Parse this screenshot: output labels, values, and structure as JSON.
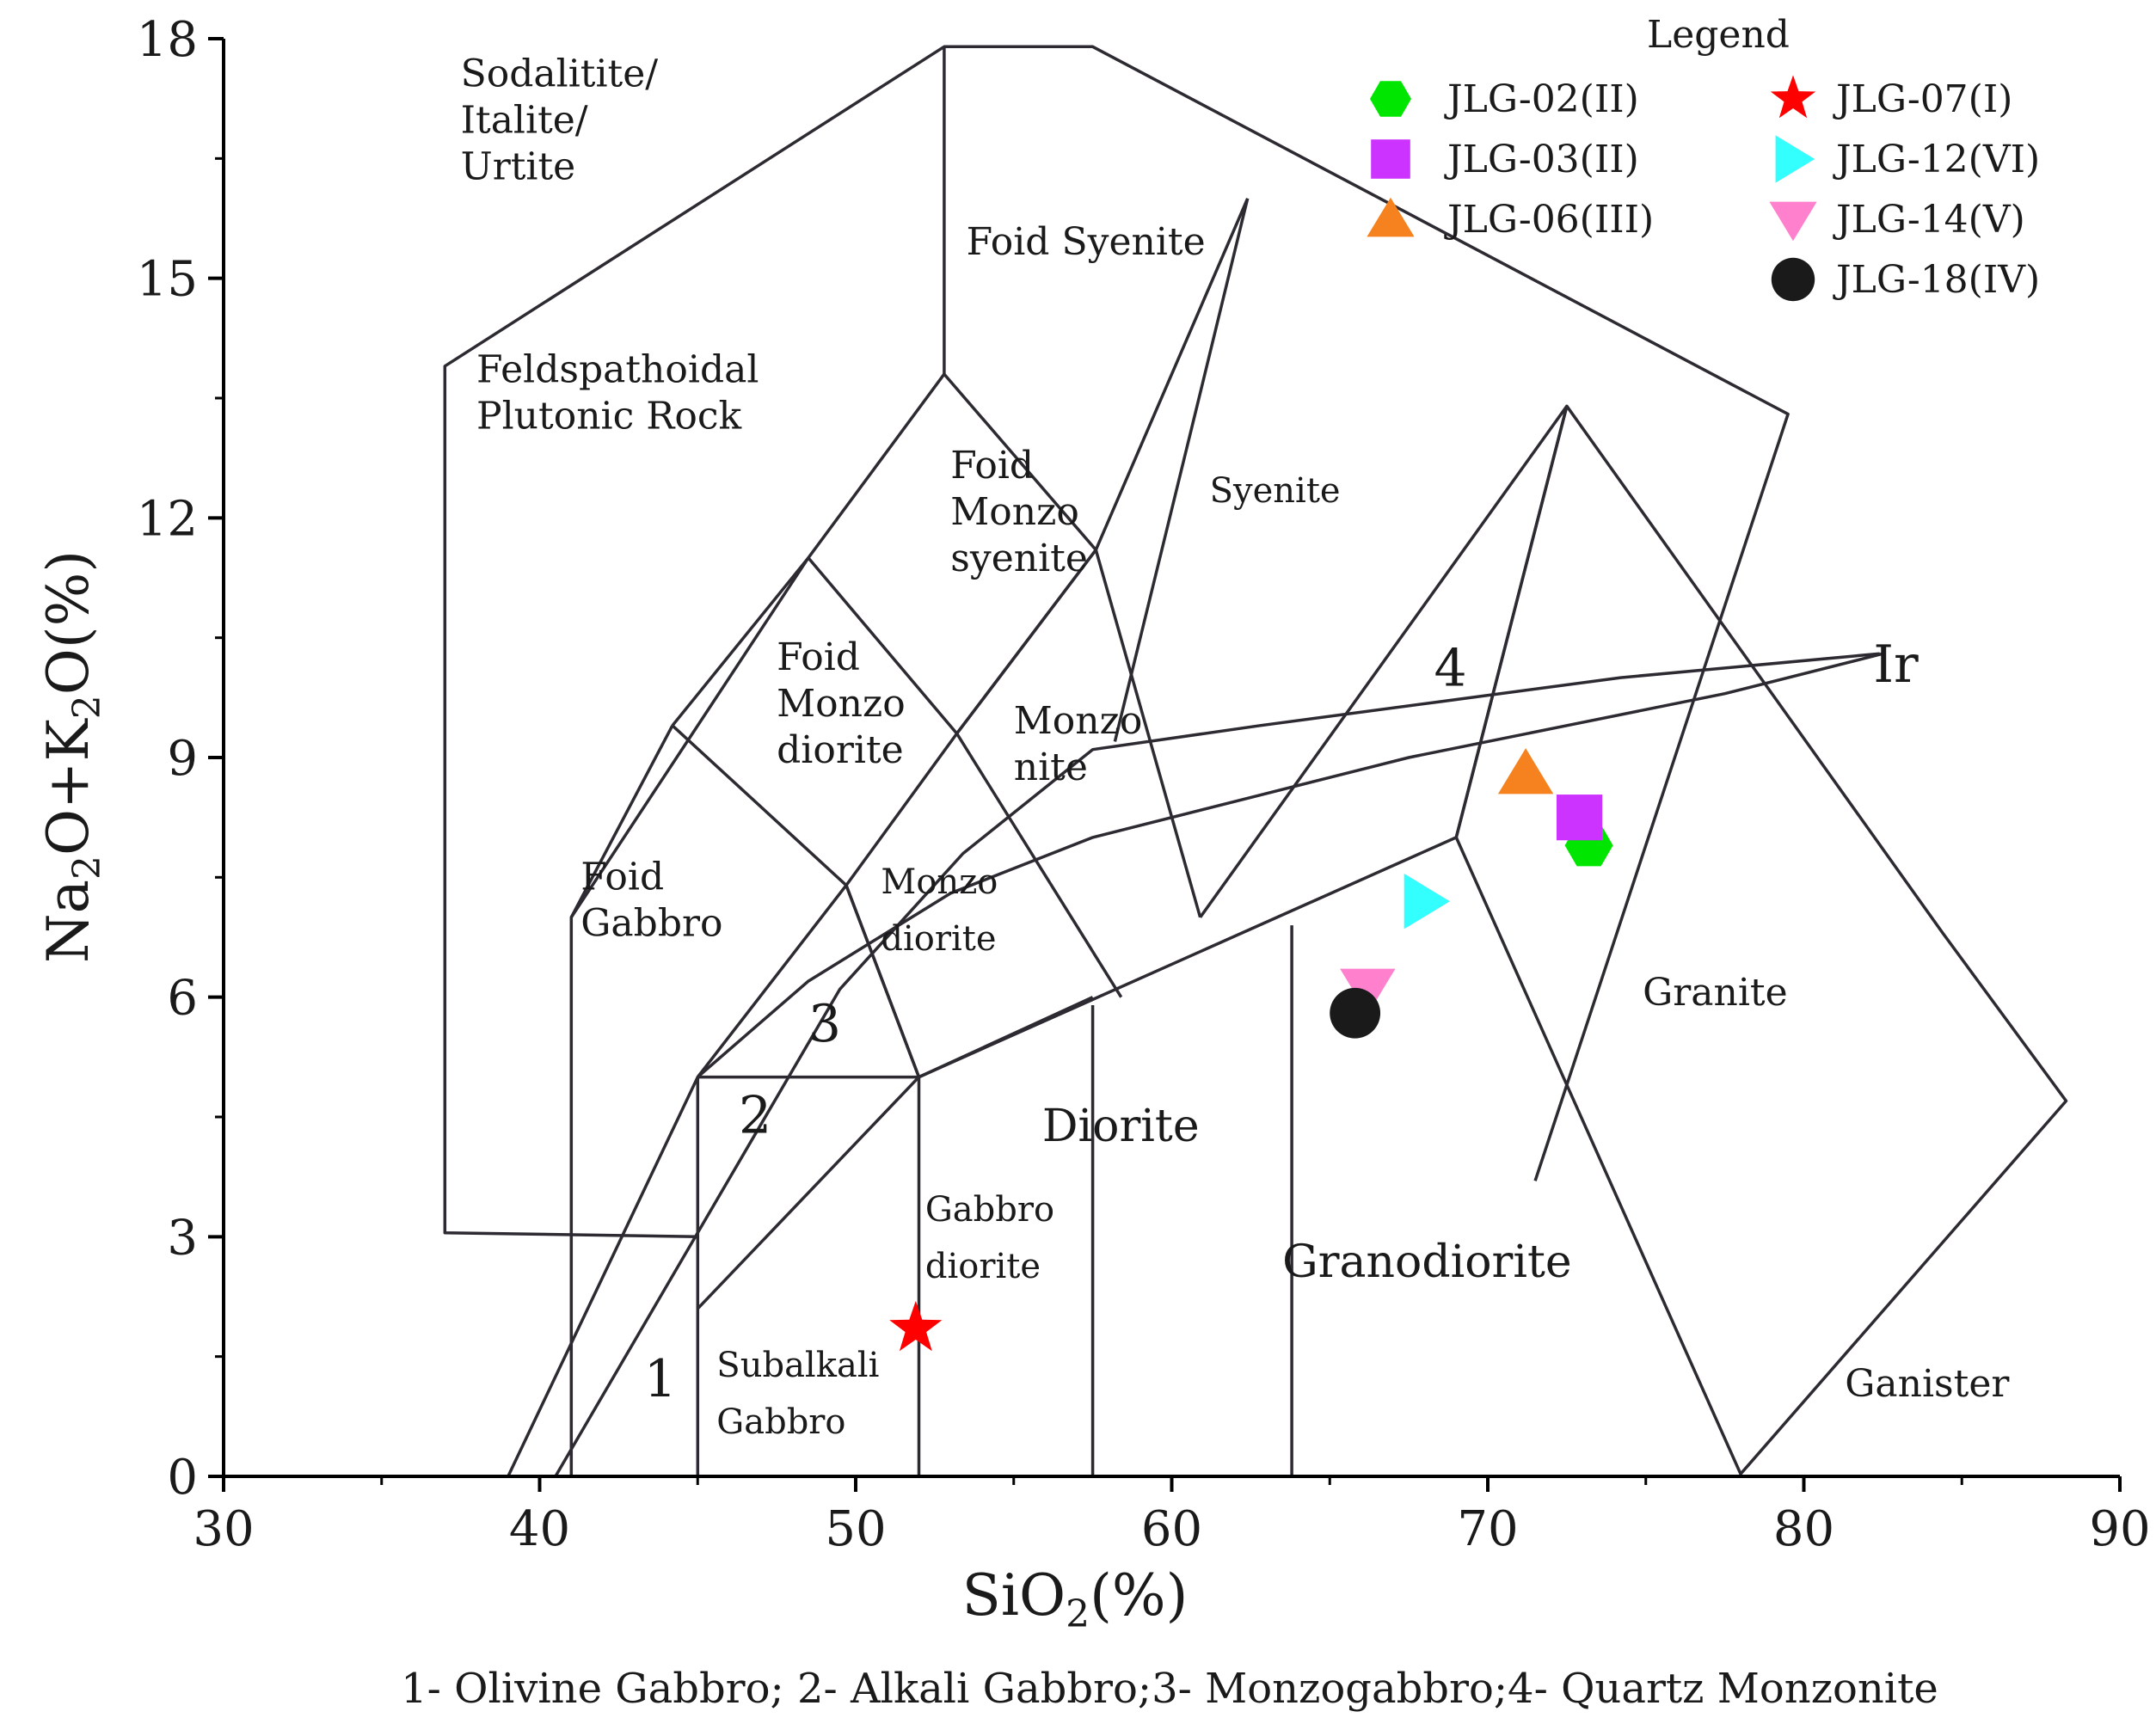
{
  "chart_data": {
    "type": "scatter",
    "title": "",
    "xlabel": {
      "base": "SiO",
      "sub": "2",
      "tail": "(%)"
    },
    "ylabel": {
      "parts": [
        "Na",
        "2",
        "O+K",
        "2",
        "O(%)"
      ]
    },
    "xlim": [
      30,
      90
    ],
    "ylim": [
      0,
      18
    ],
    "xticks": [
      30,
      40,
      50,
      60,
      70,
      80,
      90
    ],
    "yticks": [
      0,
      3,
      6,
      9,
      12,
      15,
      18
    ],
    "grid": false,
    "legend_title": "Legend",
    "legend_placement": "top-right",
    "series": [
      {
        "name": "JLG-02(II)",
        "marker": "hexagon",
        "color": "#00e600",
        "x": 73.2,
        "y": 7.9
      },
      {
        "name": "JLG-03(II)",
        "marker": "square",
        "color": "#cc33ff",
        "x": 72.9,
        "y": 8.25
      },
      {
        "name": "JLG-06(III)",
        "marker": "triangle-up",
        "color": "#f5821f",
        "x": 71.2,
        "y": 8.8
      },
      {
        "name": "JLG-07(I)",
        "marker": "star",
        "color": "#ff0000",
        "x": 51.9,
        "y": 1.85
      },
      {
        "name": "JLG-12(VI)",
        "marker": "triangle-right",
        "color": "#33ffff",
        "x": 68.0,
        "y": 7.2
      },
      {
        "name": "JLG-14(V)",
        "marker": "triangle-down",
        "color": "#ff80cc",
        "x": 66.2,
        "y": 6.1
      },
      {
        "name": "JLG-18(IV)",
        "marker": "circle",
        "color": "#1a1a1a",
        "x": 65.8,
        "y": 5.8
      }
    ],
    "field_labels": [
      {
        "lines": [
          "Sodalitite/",
          "Italite/",
          "Urtite"
        ],
        "x": 37.5,
        "y": 17.4,
        "cls": "fld"
      },
      {
        "lines": [
          "Feldspathoidal",
          "Plutonic Rock"
        ],
        "x": 38.0,
        "y": 13.7,
        "cls": "fld"
      },
      {
        "lines": [
          "Foid Syenite"
        ],
        "x": 53.5,
        "y": 15.3,
        "cls": "fld"
      },
      {
        "lines": [
          "Foid",
          "Monzo",
          "syenite"
        ],
        "x": 53.0,
        "y": 12.5,
        "cls": "fld"
      },
      {
        "lines": [
          "Syenite"
        ],
        "x": 61.2,
        "y": 12.2,
        "cls": "fld-sm"
      },
      {
        "lines": [
          "Foid",
          "Monzo",
          "diorite"
        ],
        "x": 47.5,
        "y": 10.1,
        "cls": "fld"
      },
      {
        "lines": [
          "Monzo",
          "nite"
        ],
        "x": 55.0,
        "y": 9.3,
        "cls": "fld"
      },
      {
        "lines": [
          "Foid",
          "Gabbro"
        ],
        "x": 41.3,
        "y": 7.35,
        "cls": "fld"
      },
      {
        "lines": [
          "Monzo",
          "diorite"
        ],
        "x": 50.8,
        "y": 7.3,
        "cls": "fld-sm"
      },
      {
        "lines": [
          "Diorite"
        ],
        "x": 55.9,
        "y": 4.2,
        "cls": "fld-lg"
      },
      {
        "lines": [
          "Gabbro",
          "diorite"
        ],
        "x": 52.2,
        "y": 3.2,
        "cls": "fld-sm"
      },
      {
        "lines": [
          "Granodiorite"
        ],
        "x": 63.5,
        "y": 2.5,
        "cls": "fld-lg"
      },
      {
        "lines": [
          "Granite"
        ],
        "x": 74.9,
        "y": 5.9,
        "cls": "fld"
      },
      {
        "lines": [
          "Subalkali",
          "Gabbro"
        ],
        "x": 45.6,
        "y": 1.25,
        "cls": "fld-sm"
      },
      {
        "lines": [
          "Ganister"
        ],
        "x": 81.3,
        "y": 1.0,
        "cls": "fld"
      },
      {
        "lines": [
          "1"
        ],
        "x": 43.3,
        "y": 1.0,
        "cls": "num"
      },
      {
        "lines": [
          "2"
        ],
        "x": 46.3,
        "y": 4.3,
        "cls": "num"
      },
      {
        "lines": [
          "3"
        ],
        "x": 48.5,
        "y": 5.45,
        "cls": "num"
      },
      {
        "lines": [
          "4"
        ],
        "x": 68.3,
        "y": 9.9,
        "cls": "num"
      },
      {
        "lines": [
          "Ir"
        ],
        "x": 82.2,
        "y": 9.95,
        "cls": "num"
      }
    ],
    "boundaries": [
      [
        [
          45,
          3
        ],
        [
          37,
          3.05
        ],
        [
          37,
          13.9
        ],
        [
          52.8,
          17.9
        ],
        [
          57.5,
          17.9
        ],
        [
          79.5,
          13.3
        ],
        [
          71.5,
          3.7
        ]
      ],
      [
        [
          52.8,
          17.9
        ],
        [
          52.8,
          13.8
        ]
      ],
      [
        [
          41,
          0
        ],
        [
          41,
          7
        ],
        [
          48.5,
          11.5
        ],
        [
          52.8,
          13.8
        ],
        [
          57.6,
          11.6
        ],
        [
          62.4,
          16
        ]
      ],
      [
        [
          62.4,
          16
        ],
        [
          60.8,
          13.4
        ],
        [
          58.2,
          9.2
        ]
      ],
      [
        [
          44.2,
          9.4
        ],
        [
          41,
          7
        ]
      ],
      [
        [
          44.2,
          9.4
        ],
        [
          48.5,
          11.5
        ],
        [
          53.2,
          9.3
        ],
        [
          57.6,
          11.6
        ]
      ],
      [
        [
          53.2,
          9.3
        ],
        [
          57.6,
          11.6
        ],
        [
          60.9,
          7
        ]
      ],
      [
        [
          44.2,
          9.4
        ],
        [
          49.7,
          7.4
        ],
        [
          53.2,
          9.3
        ]
      ],
      [
        [
          45,
          5
        ],
        [
          49.7,
          7.4
        ],
        [
          52,
          5
        ],
        [
          45,
          5
        ]
      ],
      [
        [
          49.7,
          7.4
        ],
        [
          52,
          5
        ]
      ],
      [
        [
          53.2,
          9.3
        ],
        [
          58.4,
          6
        ]
      ],
      [
        [
          45,
          0
        ],
        [
          45,
          5
        ]
      ],
      [
        [
          45,
          2.1
        ],
        [
          52,
          5
        ],
        [
          69,
          8
        ],
        [
          72.5,
          13.4
        ],
        [
          84.4,
          6.8
        ],
        [
          88.3,
          4.7
        ],
        [
          78,
          0.03
        ],
        [
          69,
          8
        ]
      ],
      [
        [
          60.9,
          7
        ],
        [
          72.5,
          13.4
        ]
      ],
      [
        [
          72.5,
          13.4
        ],
        [
          69,
          8
        ]
      ],
      [
        [
          52,
          0
        ],
        [
          52,
          5
        ],
        [
          57.5,
          6
        ]
      ],
      [
        [
          57.5,
          0
        ],
        [
          57.5,
          5.9
        ]
      ],
      [
        [
          63.8,
          0
        ],
        [
          63.8,
          6.9
        ]
      ],
      [
        [
          39,
          0
        ],
        [
          45,
          5
        ],
        [
          48.5,
          6.2
        ],
        [
          53,
          7.3
        ],
        [
          57.5,
          8
        ],
        [
          62.5,
          8.5
        ],
        [
          67.5,
          9
        ],
        [
          72.5,
          9.4
        ],
        [
          77.5,
          9.8
        ],
        [
          82.5,
          10.3
        ]
      ],
      [
        [
          40.5,
          0
        ],
        [
          49.5,
          6.1
        ],
        [
          53.4,
          7.8
        ],
        [
          57.5,
          9.1
        ],
        [
          62.8,
          9.4
        ],
        [
          68.5,
          9.7
        ],
        [
          74.2,
          10
        ],
        [
          82.4,
          10.3
        ]
      ]
    ]
  },
  "caption": "1- Olivine Gabbro; 2- Alkali Gabbro;3- Monzogabbro;4- Quartz Monzonite"
}
